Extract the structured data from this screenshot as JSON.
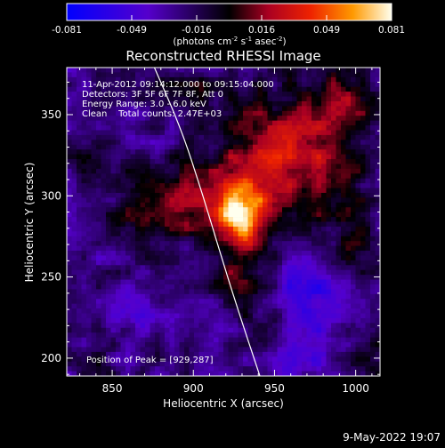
{
  "chart_data": {
    "type": "heatmap",
    "title": "Reconstructed RHESSI Image",
    "xlabel": "Heliocentric X (arcsec)",
    "ylabel": "Heliocentric Y (arcsec)",
    "xlim": [
      822,
      1015
    ],
    "ylim": [
      189,
      379
    ],
    "x_ticks": [
      850,
      900,
      950,
      1000
    ],
    "y_ticks": [
      200,
      250,
      300,
      350
    ],
    "colorbar": {
      "min": -0.081,
      "max": 0.081,
      "ticks": [
        "-0.081",
        "-0.049",
        "-0.016",
        "0.016",
        "0.049",
        "0.081"
      ],
      "label_parts": [
        "(photons cm",
        "-2",
        " s",
        "-1",
        " asec",
        "-2",
        ")"
      ]
    },
    "annotations": [
      "11-Apr-2012 09:14:12.000 to 09:15:04.000",
      "Detectors: 3F 5F 6F 7F 8F, Att 0",
      "Energy Range: 3.0 - 6.0 keV",
      "Clean    Total counts: 2.47E+03"
    ],
    "peak": {
      "label": "Position of Peak = [929,287]",
      "x": 929,
      "y": 287
    },
    "limb_curve": [
      [
        876,
        379
      ],
      [
        893,
        340
      ],
      [
        906,
        300
      ],
      [
        918,
        260
      ],
      [
        929,
        225
      ],
      [
        941,
        189
      ]
    ],
    "sources": [
      {
        "x": 928,
        "y": 287,
        "sx": 10,
        "sy": 12,
        "amp": 0.075
      },
      {
        "x": 940,
        "y": 305,
        "sx": 22,
        "sy": 20,
        "amp": 0.045
      },
      {
        "x": 955,
        "y": 340,
        "sx": 25,
        "sy": 20,
        "amp": 0.032
      },
      {
        "x": 895,
        "y": 300,
        "sx": 20,
        "sy": 12,
        "amp": 0.035
      },
      {
        "x": 880,
        "y": 285,
        "sx": 18,
        "sy": 10,
        "amp": 0.03
      },
      {
        "x": 930,
        "y": 255,
        "sx": 14,
        "sy": 14,
        "amp": 0.032
      },
      {
        "x": 985,
        "y": 320,
        "sx": 18,
        "sy": 25,
        "amp": 0.025
      },
      {
        "x": 990,
        "y": 360,
        "sx": 15,
        "sy": 12,
        "amp": 0.025
      },
      {
        "x": 995,
        "y": 270,
        "sx": 12,
        "sy": 15,
        "amp": 0.02
      },
      {
        "x": 950,
        "y": 220,
        "sx": 12,
        "sy": 10,
        "amp": 0.018
      },
      {
        "x": 900,
        "y": 365,
        "sx": 15,
        "sy": 10,
        "amp": 0.015
      },
      {
        "x": 840,
        "y": 325,
        "sx": 12,
        "sy": 12,
        "amp": 0.015
      },
      {
        "x": 1005,
        "y": 200,
        "sx": 10,
        "sy": 10,
        "amp": 0.015
      },
      {
        "x": 835,
        "y": 200,
        "sx": 10,
        "sy": 8,
        "amp": 0.012
      },
      {
        "x": 970,
        "y": 240,
        "sx": 15,
        "sy": 20,
        "amp": -0.035
      },
      {
        "x": 965,
        "y": 200,
        "sx": 15,
        "sy": 8,
        "amp": -0.025
      },
      {
        "x": 865,
        "y": 230,
        "sx": 15,
        "sy": 12,
        "amp": -0.012
      }
    ],
    "grid": false
  },
  "footer": {
    "date": "9-May-2022 19:07"
  }
}
